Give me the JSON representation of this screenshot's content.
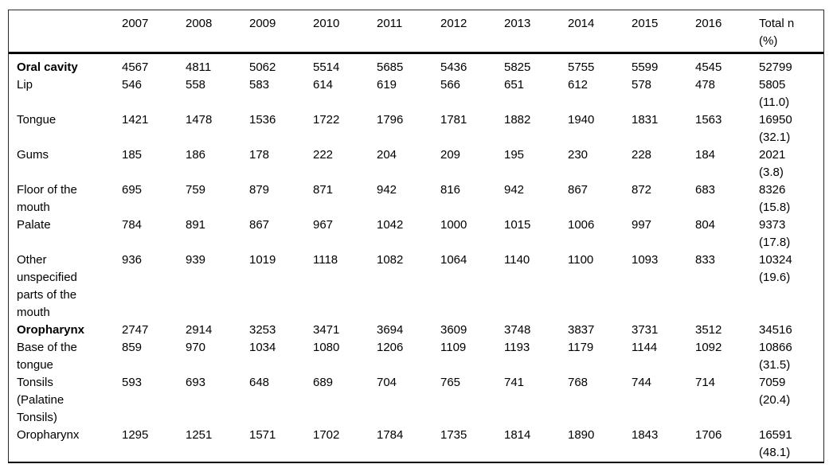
{
  "table": {
    "header": {
      "corner_label": "",
      "year_columns": [
        "2007",
        "2008",
        "2009",
        "2010",
        "2011",
        "2012",
        "2013",
        "2014",
        "2015",
        "2016"
      ],
      "total_column": "Total n (%)"
    },
    "rows": [
      {
        "label": "Oral cavity",
        "bold": true,
        "values": [
          "4567",
          "4811",
          "5062",
          "5514",
          "5685",
          "5436",
          "5825",
          "5755",
          "5599",
          "4545"
        ],
        "total_n": "52799",
        "total_pct": ""
      },
      {
        "label": "Lip",
        "bold": false,
        "values": [
          "546",
          "558",
          "583",
          "614",
          "619",
          "566",
          "651",
          "612",
          "578",
          "478"
        ],
        "total_n": "5805",
        "total_pct": "(11.0)"
      },
      {
        "label": "Tongue",
        "bold": false,
        "values": [
          "1421",
          "1478",
          "1536",
          "1722",
          "1796",
          "1781",
          "1882",
          "1940",
          "1831",
          "1563"
        ],
        "total_n": "16950",
        "total_pct": "(32.1)"
      },
      {
        "label": "Gums",
        "bold": false,
        "values": [
          "185",
          "186",
          "178",
          "222",
          "204",
          "209",
          "195",
          "230",
          "228",
          "184"
        ],
        "total_n": "2021",
        "total_pct": "(3.8)"
      },
      {
        "label": "Floor of the mouth",
        "bold": false,
        "values": [
          "695",
          "759",
          "879",
          "871",
          "942",
          "816",
          "942",
          "867",
          "872",
          "683"
        ],
        "total_n": "8326",
        "total_pct": "(15.8)"
      },
      {
        "label": "Palate",
        "bold": false,
        "values": [
          "784",
          "891",
          "867",
          "967",
          "1042",
          "1000",
          "1015",
          "1006",
          "997",
          "804"
        ],
        "total_n": "9373",
        "total_pct": "(17.8)"
      },
      {
        "label": "Other unspecified parts of the mouth",
        "bold": false,
        "values": [
          "936",
          "939",
          "1019",
          "1118",
          "1082",
          "1064",
          "1140",
          "1100",
          "1093",
          "833"
        ],
        "total_n": "10324",
        "total_pct": "(19.6)"
      },
      {
        "label": "Oropharynx",
        "bold": true,
        "values": [
          "2747",
          "2914",
          "3253",
          "3471",
          "3694",
          "3609",
          "3748",
          "3837",
          "3731",
          "3512"
        ],
        "total_n": "34516",
        "total_pct": ""
      },
      {
        "label": "Base of the tongue",
        "bold": false,
        "values": [
          "859",
          "970",
          "1034",
          "1080",
          "1206",
          "1109",
          "1193",
          "1179",
          "1144",
          "1092"
        ],
        "total_n": "10866",
        "total_pct": "(31.5)"
      },
      {
        "label": "Tonsils (Palatine Tonsils)",
        "bold": false,
        "values": [
          "593",
          "693",
          "648",
          "689",
          "704",
          "765",
          "741",
          "768",
          "744",
          "714"
        ],
        "total_n": "7059",
        "total_pct": "(20.4)"
      },
      {
        "label": "Oropharynx",
        "bold": false,
        "values": [
          "1295",
          "1251",
          "1571",
          "1702",
          "1784",
          "1735",
          "1814",
          "1890",
          "1843",
          "1706"
        ],
        "total_n": "16591",
        "total_pct": "(48.1)"
      }
    ]
  }
}
